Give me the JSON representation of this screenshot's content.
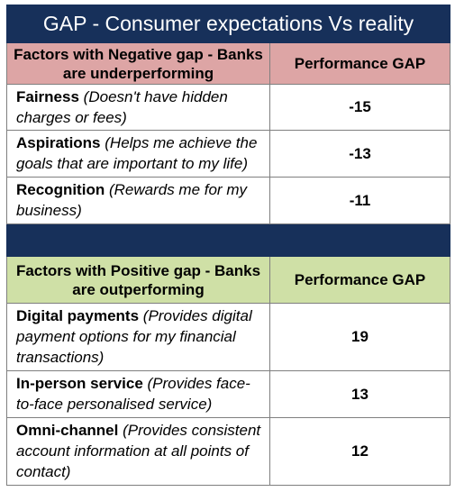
{
  "title": "GAP - Consumer expectations Vs reality",
  "colors": {
    "title_bg": "#17305a",
    "negative_header_bg": "#dda5a5",
    "positive_header_bg": "#cfe0a6"
  },
  "negative": {
    "header_factor": "Factors with Negative gap - Banks are underperforming",
    "header_gap": "Performance GAP",
    "rows": [
      {
        "name": "Fairness",
        "desc": "(Doesn't have hidden charges or fees)",
        "value": "-15"
      },
      {
        "name": "Aspirations",
        "desc": "(Helps me achieve the goals that are important to my life)",
        "value": "-13"
      },
      {
        "name": "Recognition",
        "desc": "(Rewards me for my business)",
        "value": "-11"
      }
    ]
  },
  "positive": {
    "header_factor": "Factors with Positive gap - Banks are outperforming",
    "header_gap": "Performance GAP",
    "rows": [
      {
        "name": "Digital payments",
        "desc": "(Provides digital payment options for my financial transactions)",
        "value": "19"
      },
      {
        "name": "In-person service",
        "desc": "(Provides face-to-face personalised service)",
        "value": "13"
      },
      {
        "name": "Omni-channel",
        "desc": "(Provides consistent account information at all points of contact)",
        "value": "12"
      }
    ]
  }
}
